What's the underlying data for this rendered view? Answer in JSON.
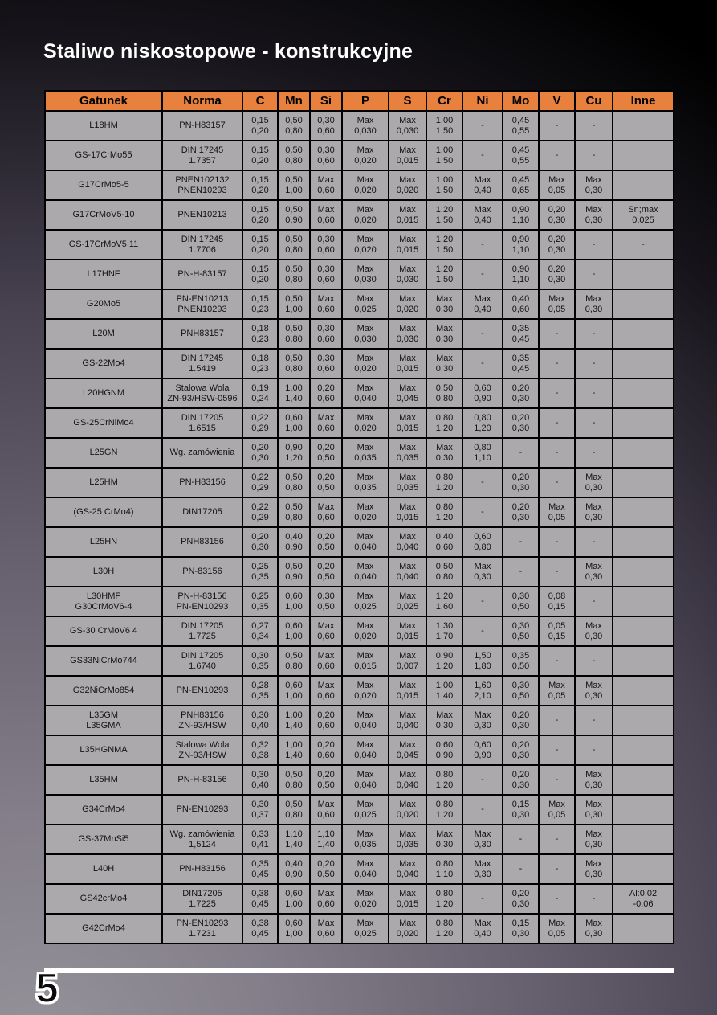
{
  "page": {
    "title": "Staliwo niskostopowe - konstrukcyjne",
    "page_number": "5"
  },
  "colors": {
    "header-bg": "#E8813E",
    "cell-bg": "#ABA9AB",
    "border": "#000000",
    "title-color": "#FFFFFF"
  },
  "table": {
    "columns": [
      "Gatunek",
      "Norma",
      "C",
      "Mn",
      "Si",
      "P",
      "S",
      "Cr",
      "Ni",
      "Mo",
      "V",
      "Cu",
      "Inne"
    ],
    "rows": [
      [
        "L18HM",
        "PN-H83157",
        "0,15\n0,20",
        "0,50\n0,80",
        "0,30\n0,60",
        "Max\n0,030",
        "Max\n0,030",
        "1,00\n1,50",
        "-",
        "0,45\n0,55",
        "-",
        "-",
        ""
      ],
      [
        "GS-17CrMo55",
        "DIN 17245\n1.7357",
        "0,15\n0,20",
        "0,50\n0,80",
        "0,30\n0,60",
        "Max\n0,020",
        "Max\n0,015",
        "1,00\n1,50",
        "-",
        "0,45\n0,55",
        "-",
        "-",
        ""
      ],
      [
        "G17CrMo5-5",
        "PNEN102132\nPNEN10293",
        "0,15\n0,20",
        "0,50\n1,00",
        "Max\n0,60",
        "Max\n0,020",
        "Max\n0,020",
        "1,00\n1,50",
        "Max\n0,40",
        "0,45\n0,65",
        "Max\n0,05",
        "Max\n0,30",
        ""
      ],
      [
        "G17CrMoV5-10",
        "PNEN10213",
        "0,15\n0,20",
        "0,50\n0,90",
        "Max\n0,60",
        "Max\n0,020",
        "Max\n0,015",
        "1,20\n1,50",
        "Max\n0,40",
        "0,90\n1,10",
        "0,20\n0,30",
        "Max\n0,30",
        "Sn;max\n0,025"
      ],
      [
        "GS-17CrMoV5 11",
        "DIN 17245\n1.7706",
        "0,15\n0,20",
        "0,50\n0,80",
        "0,30\n0,60",
        "Max\n0,020",
        "Max\n0,015",
        "1,20\n1,50",
        "-",
        "0,90\n1,10",
        "0,20\n0,30",
        "-",
        "-"
      ],
      [
        "L17HNF",
        "PN-H-83157",
        "0,15\n0,20",
        "0,50\n0,80",
        "0,30\n0,60",
        "Max\n0,030",
        "Max\n0,030",
        "1,20\n1,50",
        "-",
        "0,90\n1,10",
        "0,20\n0,30",
        "-",
        ""
      ],
      [
        "G20Mo5",
        "PN-EN10213\nPNEN10293",
        "0,15\n0,23",
        "0,50\n1,00",
        "Max\n0,60",
        "Max\n0,025",
        "Max\n0,020",
        "Max\n0,30",
        "Max\n0,40",
        "0,40\n0,60",
        "Max\n0,05",
        "Max\n0,30",
        ""
      ],
      [
        "L20M",
        "PNH83157",
        "0,18\n0,23",
        "0,50\n0,80",
        "0,30\n0,60",
        "Max\n0,030",
        "Max\n0,030",
        "Max\n0,30",
        "-",
        "0,35\n0,45",
        "-",
        "-",
        ""
      ],
      [
        "GS-22Mo4",
        "DIN 17245\n1.5419",
        "0,18\n0,23",
        "0,50\n0,80",
        "0,30\n0,60",
        "Max\n0,020",
        "Max\n0,015",
        "Max\n0,30",
        "-",
        "0,35\n0,45",
        "-",
        "-",
        ""
      ],
      [
        "L20HGNM",
        "Stalowa Wola\nZN-93/HSW-0596",
        "0,19\n0,24",
        "1,00\n1,40",
        "0,20\n0,60",
        "Max\n0,040",
        "Max\n0,045",
        "0,50\n0,80",
        "0,60\n0,90",
        "0,20\n0,30",
        "-",
        "-",
        ""
      ],
      [
        "GS-25CrNiMo4",
        "DIN 17205\n1.6515",
        "0,22\n0,29",
        "0,60\n1,00",
        "Max\n0,60",
        "Max\n0,020",
        "Max\n0,015",
        "0,80\n1,20",
        "0,80\n1,20",
        "0,20\n0,30",
        "-",
        "-",
        ""
      ],
      [
        "L25GN",
        "Wg. zamówienia",
        "0,20\n0,30",
        "0,90\n1,20",
        "0,20\n0,50",
        "Max\n0,035",
        "Max\n0,035",
        "Max\n0,30",
        "0,80\n1,10",
        "-",
        "-",
        "-",
        ""
      ],
      [
        "L25HM",
        "PN-H83156",
        "0,22\n0,29",
        "0,50\n0,80",
        "0,20\n0,50",
        "Max\n0,035",
        "Max\n0,035",
        "0,80\n1,20",
        "-",
        "0,20\n0,30",
        "-",
        "Max\n0,30",
        ""
      ],
      [
        "(GS-25 CrMo4)",
        "DIN17205",
        "0,22\n0,29",
        "0,50\n0,80",
        "Max\n0,60",
        "Max\n0,020",
        "Max\n0,015",
        "0,80\n1,20",
        "-",
        "0,20\n0,30",
        "Max\n0,05",
        "Max\n0,30",
        ""
      ],
      [
        "L25HN",
        "PNH83156",
        "0,20\n0,30",
        "0,40\n0,90",
        "0,20\n0,50",
        "Max\n0,040",
        "Max\n0,040",
        "0,40\n0,60",
        "0,60\n0,80",
        "-",
        "-",
        "-",
        ""
      ],
      [
        "L30H",
        "PN-83156",
        "0,25\n0,35",
        "0,50\n0,90",
        "0,20\n0,50",
        "Max\n0,040",
        "Max\n0,040",
        "0,50\n0,80",
        "Max\n0,30",
        "-",
        "-",
        "Max\n0,30",
        ""
      ],
      [
        "L30HMF\nG30CrMoV6-4",
        "PN-H-83156\nPN-EN10293",
        "0,25\n0,35",
        "0,60\n1,00",
        "0,30\n0,50",
        "Max\n0,025",
        "Max\n0,025",
        "1,20\n1,60",
        "-",
        "0,30\n0,50",
        "0,08\n0,15",
        "-",
        ""
      ],
      [
        "GS-30 CrMoV6 4",
        "DIN 17205\n1.7725",
        "0,27\n0,34",
        "0,60\n1,00",
        "Max\n0,60",
        "Max\n0,020",
        "Max\n0,015",
        "1,30\n1,70",
        "-",
        "0,30\n0,50",
        "0,05\n0,15",
        "Max\n0,30",
        ""
      ],
      [
        "GS33NiCrMo744",
        "DIN 17205\n1.6740",
        "0,30\n0,35",
        "0,50\n0,80",
        "Max\n0,60",
        "Max\n0,015",
        "Max\n0,007",
        "0,90\n1,20",
        "1,50\n1,80",
        "0,35\n0,50",
        "-",
        "-",
        ""
      ],
      [
        "G32NiCrMo854",
        "PN-EN10293",
        "0,28\n0,35",
        "0,60\n1,00",
        "Max\n0,60",
        "Max\n0,020",
        "Max\n0,015",
        "1,00\n1,40",
        "1,60\n2,10",
        "0,30\n0,50",
        "Max\n0,05",
        "Max\n0,30",
        ""
      ],
      [
        "L35GM\nL35GMA",
        "PNH83156\nZN-93/HSW",
        "0,30\n0,40",
        "1,00\n1,40",
        "0,20\n0,60",
        "Max\n0,040",
        "Max\n0,040",
        "Max\n0,30",
        "Max\n0,30",
        "0,20\n0,30",
        "-",
        "-",
        ""
      ],
      [
        "L35HGNMA",
        "Stalowa Wola\nZN-93/HSW",
        "0,32\n0,38",
        "1,00\n1,40",
        "0,20\n0,60",
        "Max\n0,040",
        "Max\n0,045",
        "0,60\n0,90",
        "0,60\n0,90",
        "0,20\n0,30",
        "-",
        "-",
        ""
      ],
      [
        "L35HM",
        "PN-H-83156",
        "0,30\n0,40",
        "0,50\n0,80",
        "0,20\n0,50",
        "Max\n0,040",
        "Max\n0,040",
        "0,80\n1,20",
        "-",
        "0,20\n0,30",
        "-",
        "Max\n0,30",
        ""
      ],
      [
        "G34CrMo4",
        "PN-EN10293",
        "0,30\n0,37",
        "0,50\n0,80",
        "Max\n0,60",
        "Max\n0,025",
        "Max\n0,020",
        "0,80\n1,20",
        "-",
        "0,15\n0,30",
        "Max\n0,05",
        "Max\n0,30",
        ""
      ],
      [
        "GS-37MnSi5",
        "Wg. zamówienia\n1,5124",
        "0,33\n0,41",
        "1,10\n1,40",
        "1,10\n1,40",
        "Max\n0,035",
        "Max\n0,035",
        "Max\n0,30",
        "Max\n0,30",
        "-",
        "-",
        "Max\n0,30",
        ""
      ],
      [
        "L40H",
        "PN-H83156",
        "0,35\n0,45",
        "0,40\n0,90",
        "0,20\n0,50",
        "Max\n0,040",
        "Max\n0,040",
        "0,80\n1,10",
        "Max\n0,30",
        "-",
        "-",
        "Max\n0,30",
        ""
      ],
      [
        "GS42crMo4",
        "DIN17205\n1.7225",
        "0,38\n0,45",
        "0,60\n1,00",
        "Max\n0,60",
        "Max\n0,020",
        "Max\n0,015",
        "0,80\n1,20",
        "-",
        "0,20\n0,30",
        "-",
        "-",
        "Al:0,02\n-0,06"
      ],
      [
        "G42CrMo4",
        "PN-EN10293\n1.7231",
        "0,38\n0,45",
        "0,60\n1,00",
        "Max\n0,60",
        "Max\n0,025",
        "Max\n0,020",
        "0,80\n1,20",
        "Max\n0,40",
        "0,15\n0,30",
        "Max\n0,05",
        "Max\n0,30",
        ""
      ]
    ]
  }
}
